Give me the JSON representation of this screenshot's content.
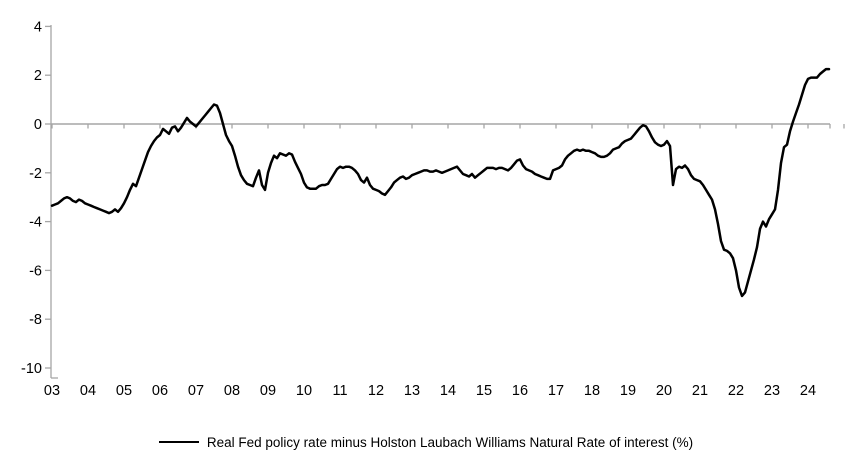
{
  "legend": {
    "label": "Real Fed policy rate minus Holston Laubach Williams Natural Rate of interest (%)"
  },
  "colors": {
    "series_line": "#000000",
    "axis_line": "#a6a6a6",
    "tick_text": "#000000",
    "background": "#ffffff"
  },
  "chart_data": {
    "type": "line",
    "title": "",
    "xlabel": "",
    "ylabel": "",
    "ylim": [
      -10,
      4
    ],
    "y_ticks": [
      4,
      2,
      0,
      -2,
      -4,
      -6,
      -8,
      -10
    ],
    "x_tick_labels": [
      "03",
      "04",
      "05",
      "06",
      "07",
      "08",
      "09",
      "10",
      "11",
      "12",
      "13",
      "14",
      "15",
      "16",
      "17",
      "18",
      "19",
      "20",
      "21",
      "22",
      "23",
      "24"
    ],
    "grid": "zero-line-only",
    "legend_position": "bottom",
    "series": [
      {
        "name": "Real Fed policy rate minus Holston Laubach Williams Natural Rate of interest (%)",
        "color": "#000000",
        "start": "2003-01",
        "frequency": "monthly",
        "values": [
          -3.35,
          -3.3,
          -3.25,
          -3.15,
          -3.05,
          -3.0,
          -3.05,
          -3.15,
          -3.2,
          -3.1,
          -3.15,
          -3.25,
          -3.3,
          -3.35,
          -3.4,
          -3.45,
          -3.5,
          -3.55,
          -3.6,
          -3.65,
          -3.6,
          -3.5,
          -3.6,
          -3.45,
          -3.25,
          -3.0,
          -2.7,
          -2.45,
          -2.55,
          -2.2,
          -1.85,
          -1.5,
          -1.15,
          -0.9,
          -0.7,
          -0.55,
          -0.45,
          -0.2,
          -0.3,
          -0.4,
          -0.15,
          -0.1,
          -0.3,
          -0.15,
          0.05,
          0.25,
          0.1,
          0.0,
          -0.1,
          0.05,
          0.2,
          0.35,
          0.5,
          0.65,
          0.8,
          0.75,
          0.45,
          0.0,
          -0.45,
          -0.7,
          -0.9,
          -1.3,
          -1.75,
          -2.1,
          -2.3,
          -2.45,
          -2.5,
          -2.55,
          -2.2,
          -1.9,
          -2.5,
          -2.7,
          -2.0,
          -1.6,
          -1.3,
          -1.4,
          -1.2,
          -1.25,
          -1.3,
          -1.2,
          -1.25,
          -1.55,
          -1.8,
          -2.05,
          -2.4,
          -2.6,
          -2.65,
          -2.65,
          -2.65,
          -2.55,
          -2.5,
          -2.5,
          -2.45,
          -2.25,
          -2.05,
          -1.85,
          -1.75,
          -1.8,
          -1.75,
          -1.75,
          -1.8,
          -1.9,
          -2.05,
          -2.3,
          -2.4,
          -2.2,
          -2.5,
          -2.65,
          -2.7,
          -2.75,
          -2.85,
          -2.9,
          -2.75,
          -2.6,
          -2.4,
          -2.3,
          -2.2,
          -2.15,
          -2.25,
          -2.2,
          -2.1,
          -2.05,
          -2.0,
          -1.95,
          -1.9,
          -1.9,
          -1.95,
          -1.95,
          -1.9,
          -1.95,
          -2.0,
          -1.95,
          -1.9,
          -1.85,
          -1.8,
          -1.75,
          -1.9,
          -2.05,
          -2.1,
          -2.15,
          -2.05,
          -2.2,
          -2.1,
          -2.0,
          -1.9,
          -1.8,
          -1.8,
          -1.8,
          -1.85,
          -1.8,
          -1.8,
          -1.85,
          -1.9,
          -1.8,
          -1.65,
          -1.5,
          -1.45,
          -1.7,
          -1.85,
          -1.9,
          -1.95,
          -2.05,
          -2.1,
          -2.15,
          -2.2,
          -2.25,
          -2.25,
          -1.9,
          -1.85,
          -1.8,
          -1.7,
          -1.45,
          -1.3,
          -1.2,
          -1.1,
          -1.05,
          -1.1,
          -1.05,
          -1.1,
          -1.1,
          -1.15,
          -1.2,
          -1.3,
          -1.35,
          -1.35,
          -1.3,
          -1.2,
          -1.05,
          -1.0,
          -0.95,
          -0.8,
          -0.7,
          -0.65,
          -0.6,
          -0.45,
          -0.3,
          -0.15,
          -0.05,
          -0.1,
          -0.3,
          -0.55,
          -0.75,
          -0.85,
          -0.9,
          -0.85,
          -0.7,
          -0.9,
          -2.5,
          -1.85,
          -1.75,
          -1.8,
          -1.7,
          -1.85,
          -2.1,
          -2.25,
          -2.3,
          -2.35,
          -2.5,
          -2.7,
          -2.9,
          -3.1,
          -3.5,
          -4.1,
          -4.8,
          -5.15,
          -5.2,
          -5.3,
          -5.5,
          -6.0,
          -6.7,
          -7.05,
          -6.9,
          -6.45,
          -6.0,
          -5.55,
          -5.05,
          -4.3,
          -4.0,
          -4.2,
          -3.9,
          -3.7,
          -3.5,
          -2.7,
          -1.6,
          -0.95,
          -0.85,
          -0.3,
          0.1,
          0.45,
          0.8,
          1.2,
          1.6,
          1.85,
          1.9,
          1.9,
          1.9,
          2.05,
          2.15,
          2.25,
          2.25
        ]
      }
    ]
  }
}
